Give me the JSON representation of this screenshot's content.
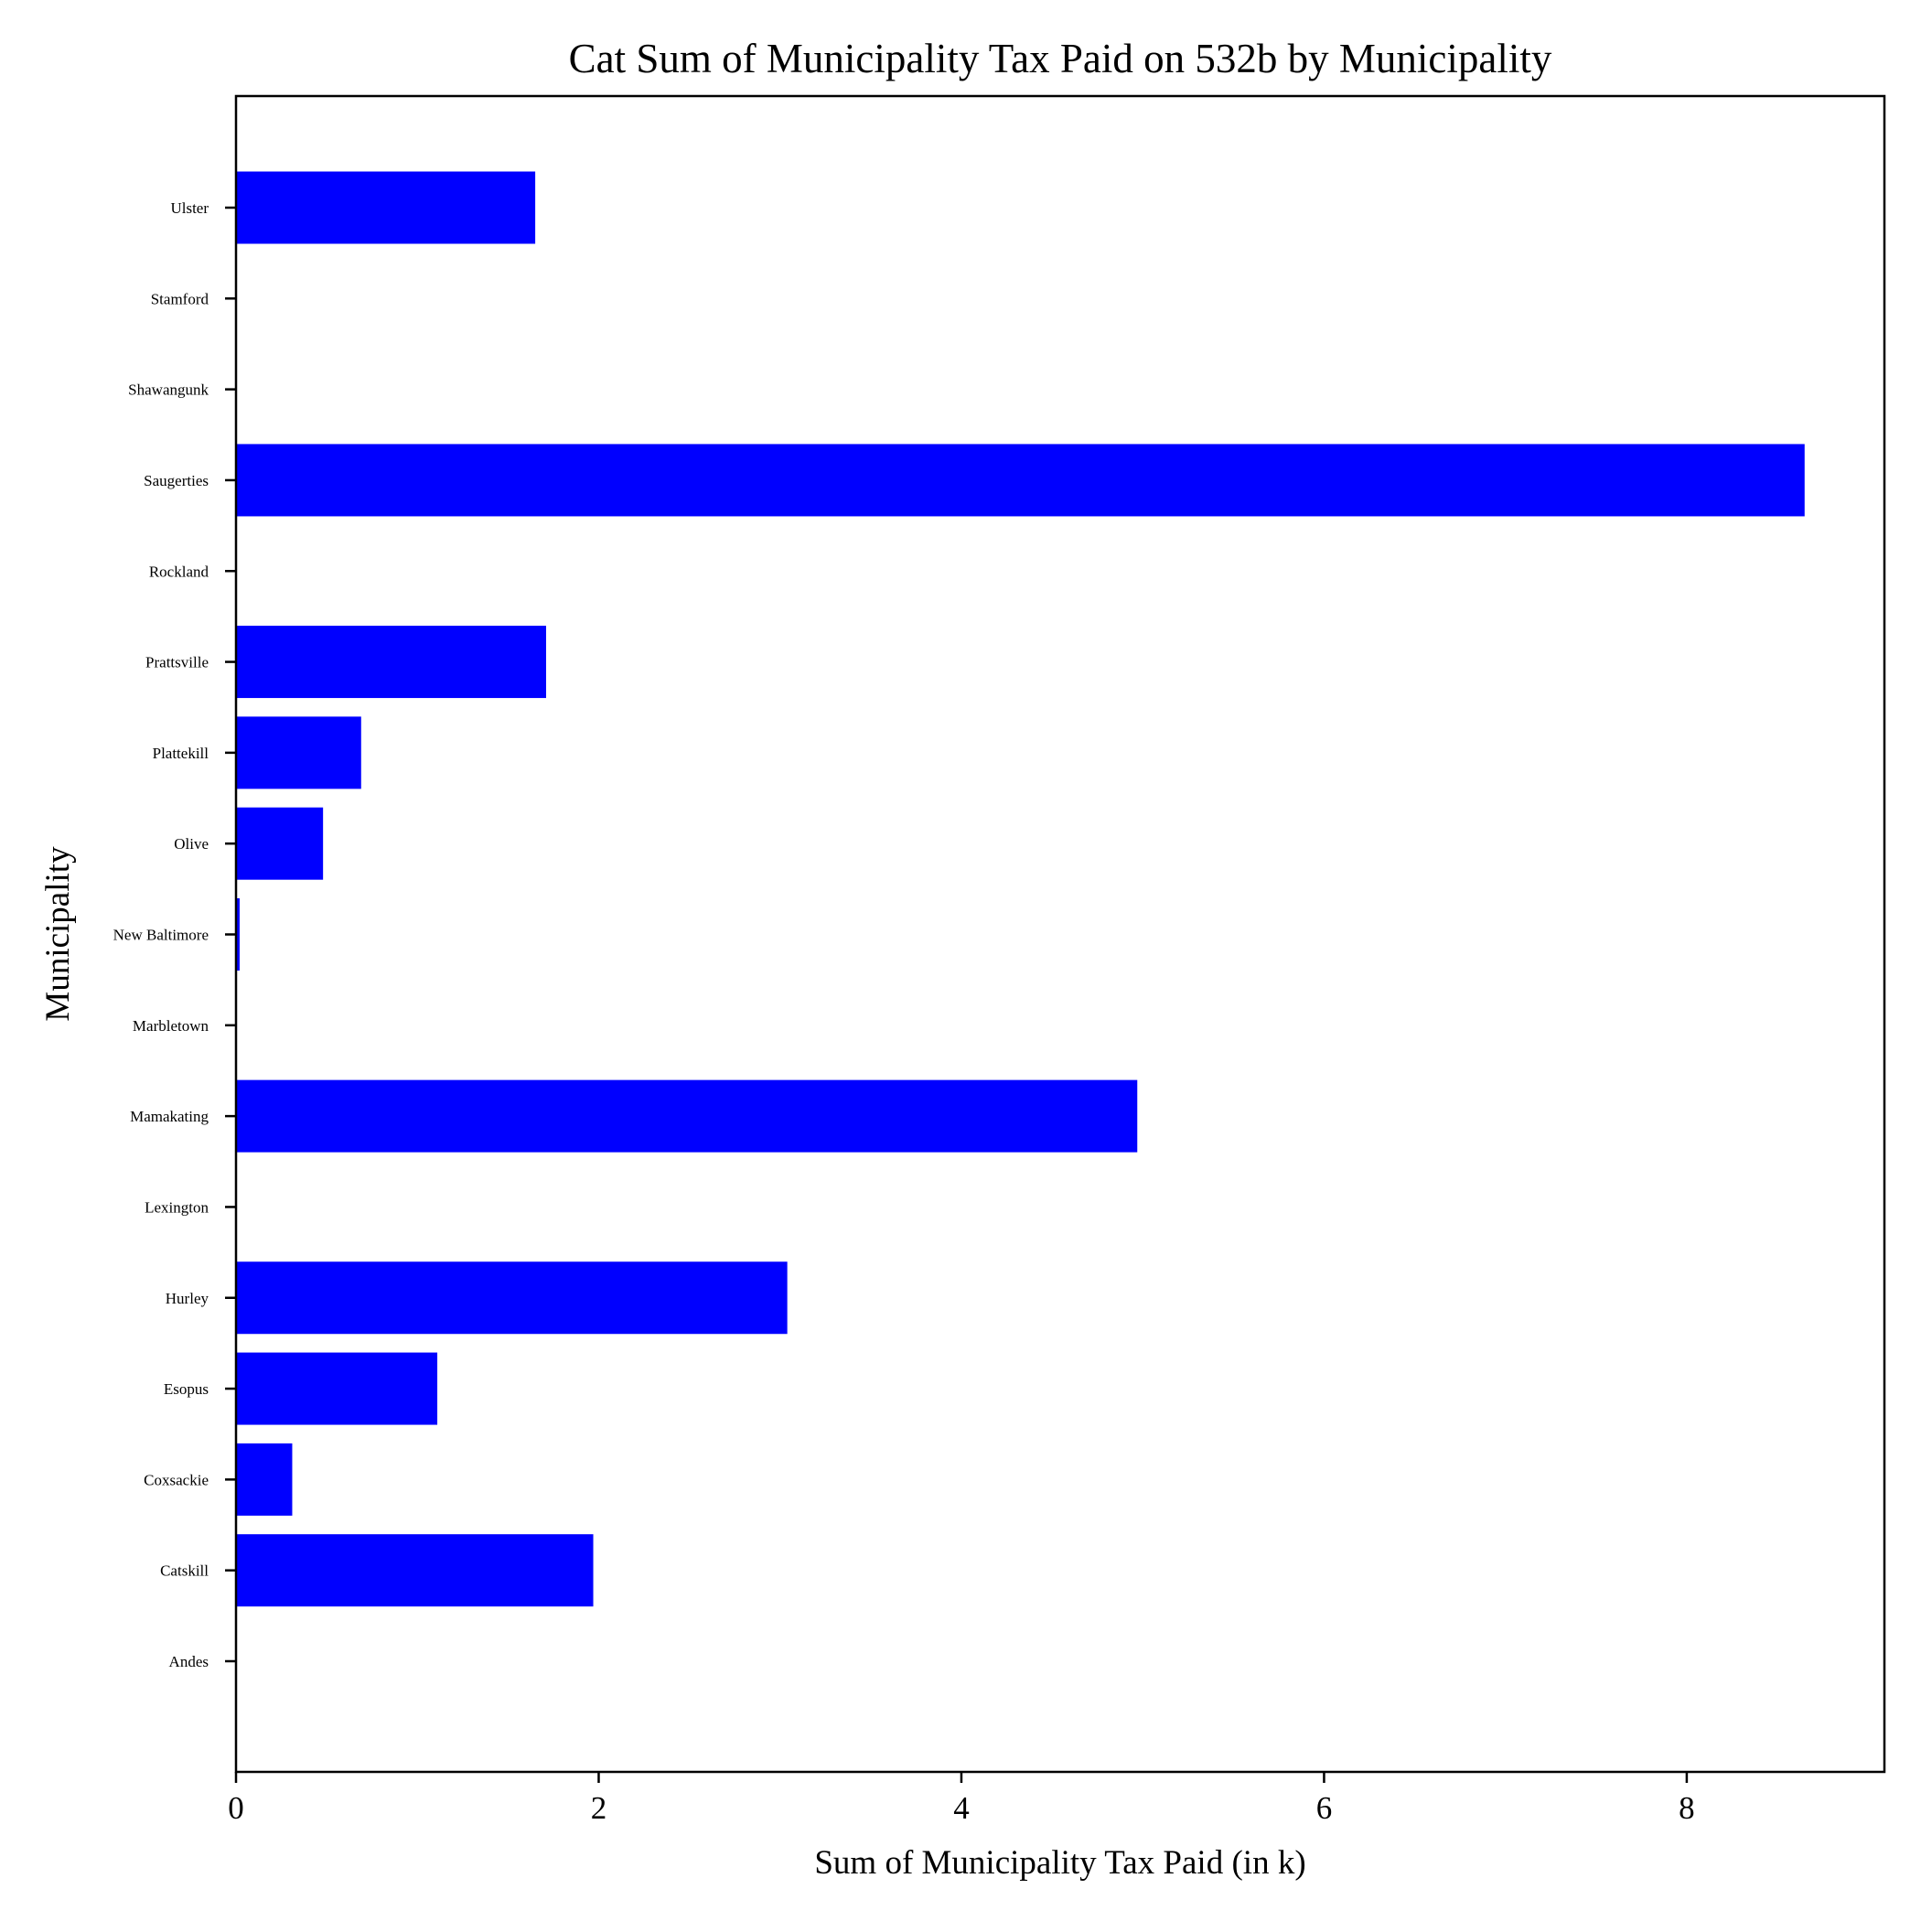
{
  "chart_data": {
    "type": "bar",
    "orientation": "horizontal",
    "title": "Cat Sum of Municipality Tax Paid on 532b by Municipality",
    "xlabel": "Sum of Municipality Tax Paid (in k)",
    "ylabel": "Municipality",
    "categories": [
      "Andes",
      "Catskill",
      "Coxsackie",
      "Esopus",
      "Hurley",
      "Lexington",
      "Mamakating",
      "Marbletown",
      "New Baltimore",
      "Olive",
      "Plattekill",
      "Prattsville",
      "Rockland",
      "Saugerties",
      "Shawangunk",
      "Stamford",
      "Ulster"
    ],
    "values": [
      0,
      1.97,
      0.31,
      1.11,
      3.04,
      0,
      4.97,
      0,
      0.02,
      0.48,
      0.69,
      1.71,
      0,
      8.65,
      0,
      0,
      1.65
    ],
    "xlim": [
      0,
      9.09
    ],
    "xticks": [
      0,
      2,
      4,
      6,
      8
    ],
    "bar_color": "#0000ff",
    "grid": false,
    "legend": false
  }
}
